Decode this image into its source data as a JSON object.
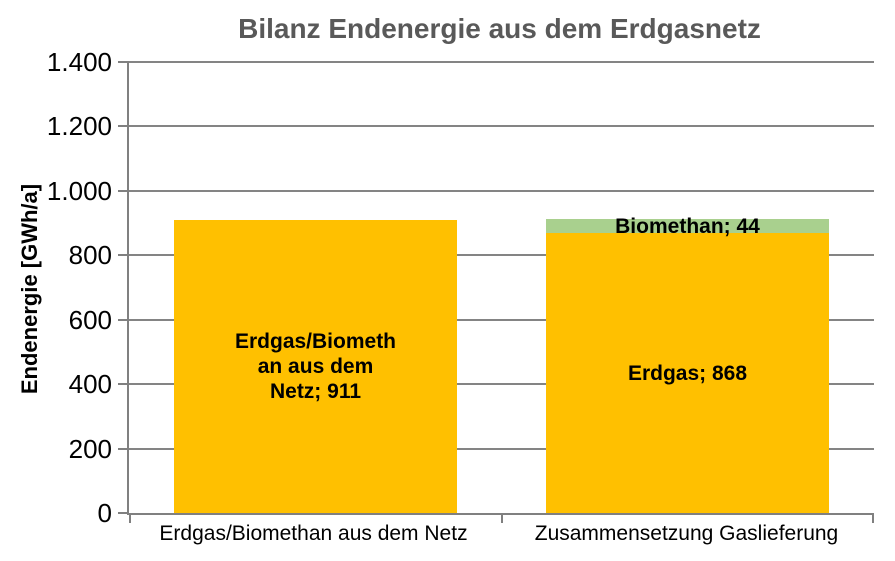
{
  "title": "Bilanz Endenergie aus dem Erdgasnetz",
  "y_axis": {
    "title": "Endenergie [GWh/a]",
    "tick_labels": [
      "0",
      "200",
      "400",
      "600",
      "800",
      "1.000",
      "1.200",
      "1.400"
    ],
    "tick_step": 200
  },
  "chart_data": {
    "type": "bar",
    "stacked": true,
    "title": "Bilanz Endenergie aus dem Erdgasnetz",
    "xlabel": "",
    "ylabel": "Endenergie [GWh/a]",
    "ylim": [
      0,
      1400
    ],
    "grid": true,
    "legend": false,
    "categories": [
      "Erdgas/Biomethan aus dem Netz",
      "Zusammensetzung Gaslieferung"
    ],
    "bars": [
      {
        "segments": [
          {
            "name": "Erdgas/Biomethan aus dem Netz",
            "value": 911,
            "color": "#FFC000",
            "label": "Erdgas/Biomethan aus dem Netz; 911",
            "label_lines": [
              "Erdgas/Biometh",
              "an aus dem",
              "Netz; 911"
            ]
          }
        ]
      },
      {
        "segments": [
          {
            "name": "Erdgas",
            "value": 868,
            "color": "#FFC000",
            "label": "Erdgas; 868",
            "label_lines": [
              "Erdgas; 868"
            ]
          },
          {
            "name": "Biomethan",
            "value": 44,
            "color": "#A9D08E",
            "label": "Biomethan; 44",
            "label_lines": [
              "Biomethan; 44"
            ]
          }
        ]
      }
    ]
  },
  "colors": {
    "bar_yellow": "#FFC000",
    "bar_green": "#A9D08E",
    "title_text": "#595959",
    "axis_line": "#808080",
    "gridline": "#848484",
    "label_text": "#000000",
    "background": "#FFFFFF"
  }
}
